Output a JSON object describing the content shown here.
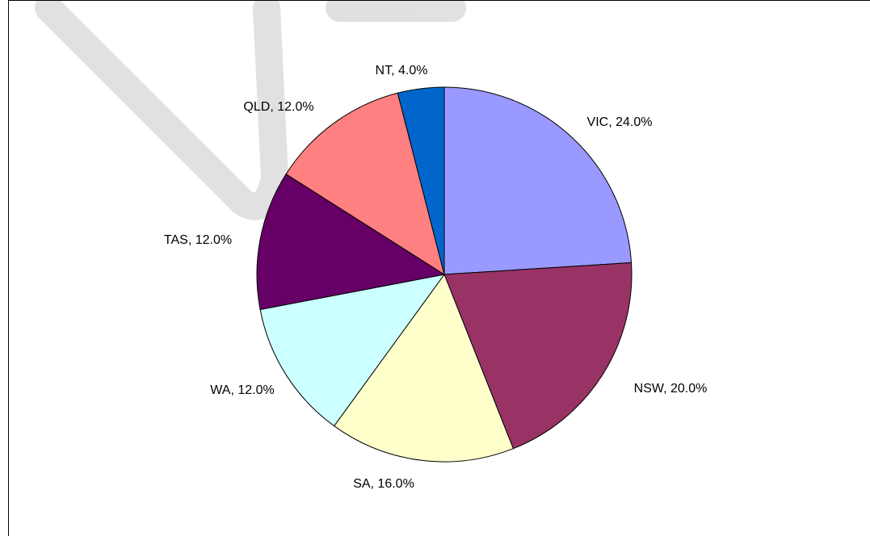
{
  "chart_data": {
    "type": "pie",
    "values": [
      24,
      20,
      16,
      12,
      12,
      12,
      4
    ],
    "value_labels": [
      "VIC, 24.0%",
      "NSW, 20.0%",
      "SA, 16.0%",
      "WA, 12.0%",
      "TAS, 12.0%",
      "QLD, 12.0%",
      "NT, 4.0%"
    ],
    "colors": [
      "#9999ff",
      "#993366",
      "#ffffcc",
      "#ccffff",
      "#660066",
      "#ff8080",
      "#0066cc"
    ]
  }
}
